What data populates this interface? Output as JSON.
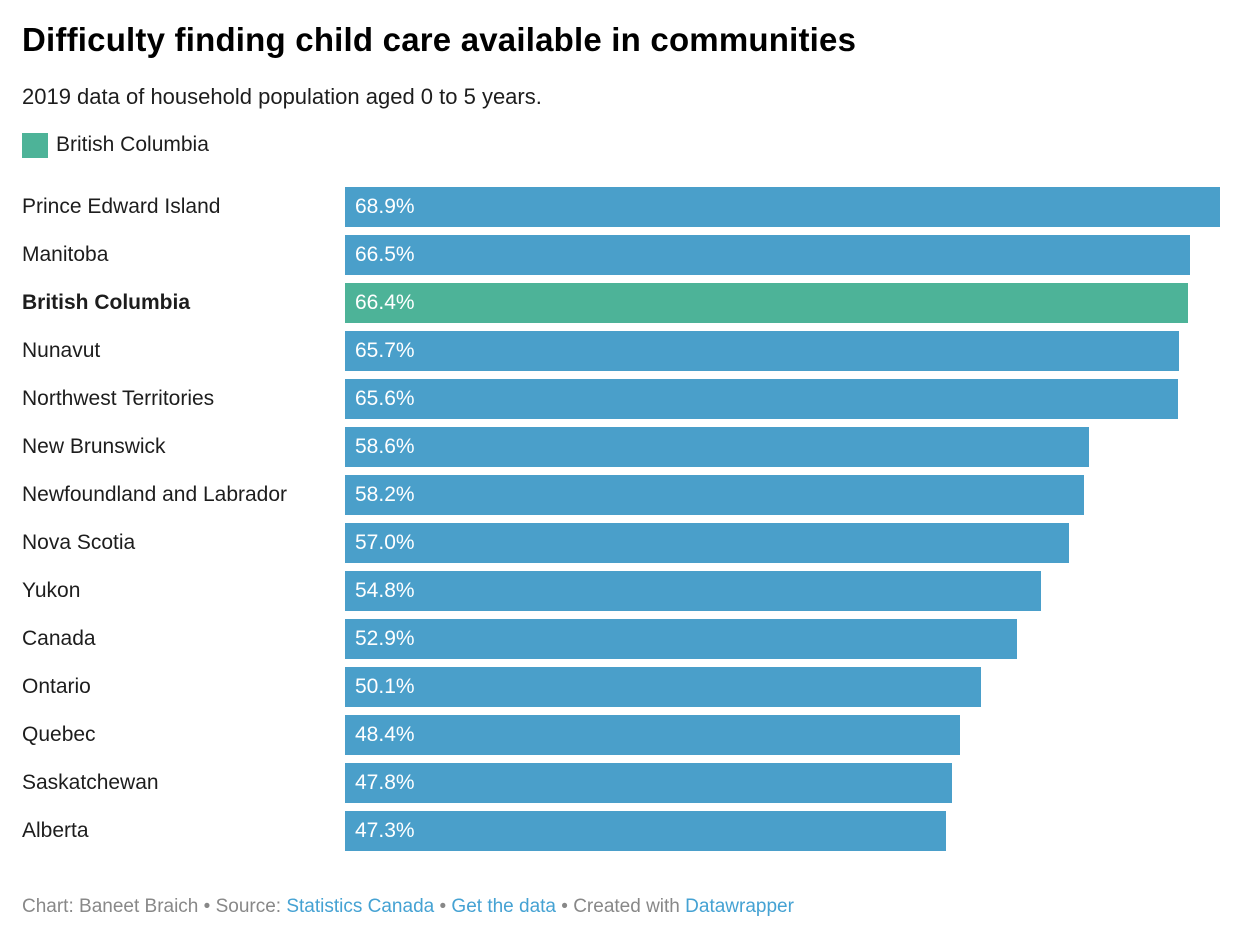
{
  "header": {
    "title": "Difficulty finding child care available in communities",
    "subtitle": "2019 data of household population aged 0 to 5 years."
  },
  "legend": {
    "label": "British Columbia",
    "swatch_color": "#4db398"
  },
  "chart_data": {
    "type": "bar",
    "orientation": "horizontal",
    "title": "Difficulty finding child care available in communities",
    "subtitle": "2019 data of household population aged 0 to 5 years.",
    "categories": [
      "Prince Edward Island",
      "Manitoba",
      "British Columbia",
      "Nunavut",
      "Northwest Territories",
      "New Brunswick",
      "Newfoundland and Labrador",
      "Nova Scotia",
      "Yukon",
      "Canada",
      "Ontario",
      "Quebec",
      "Saskatchewan",
      "Alberta"
    ],
    "values": [
      68.9,
      66.5,
      66.4,
      65.7,
      65.6,
      58.6,
      58.2,
      57.0,
      54.8,
      52.9,
      50.1,
      48.4,
      47.8,
      47.3
    ],
    "value_labels": [
      "68.9%",
      "66.5%",
      "66.4%",
      "65.7%",
      "65.6%",
      "58.6%",
      "58.2%",
      "57.0%",
      "54.8%",
      "52.9%",
      "50.1%",
      "48.4%",
      "47.8%",
      "47.3%"
    ],
    "unit": "%",
    "xlim": [
      0,
      68.9
    ],
    "grid": false,
    "legend_position": "top-left",
    "highlight_category": "British Columbia",
    "colors": {
      "default": "#4a9fca",
      "highlight": "#4db398",
      "value_label": "#ffffff",
      "category_label": "#1d1d1d"
    }
  },
  "footer": {
    "prefix": "Chart: Baneet Braich • Source: ",
    "source_link": "Statistics Canada",
    "separator1": " • ",
    "get_data_link": "Get the data",
    "separator2": " • Created with ",
    "tool_link": "Datawrapper",
    "text_color": "#888888",
    "link_color": "#45a2d3"
  }
}
